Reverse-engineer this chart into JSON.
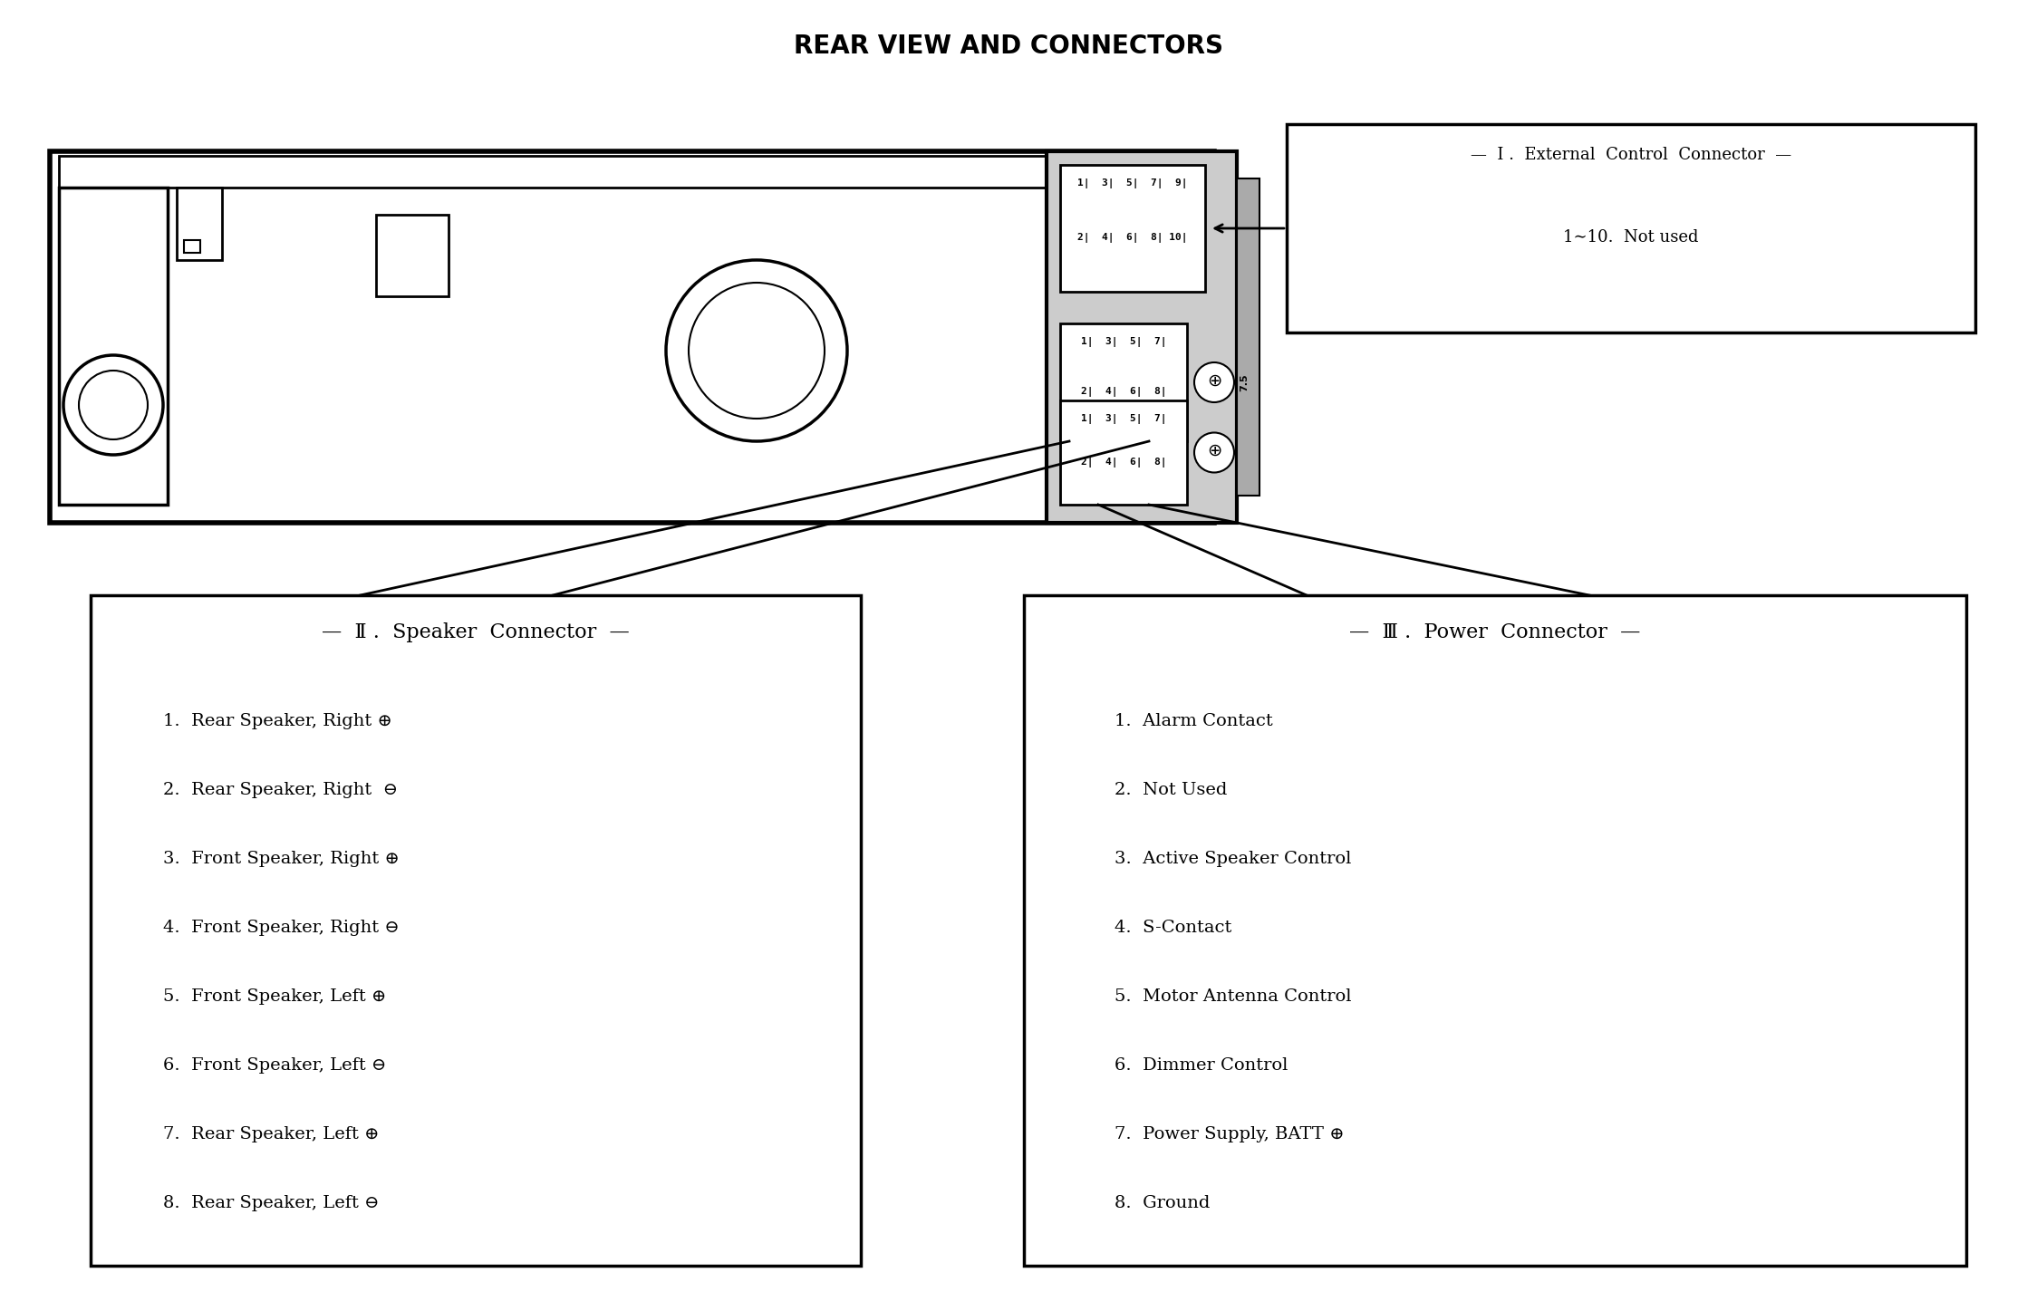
{
  "title": "REAR VIEW AND CONNECTORS",
  "title_fontsize": 20,
  "bg_color": "#ffffff",
  "fg_color": "#000000",
  "connector_I_title": "—  I .  External  Control  Connector  —",
  "connector_I_subtitle": "1∼10.  Not used",
  "connector_II_title": "—  Ⅱ .  Speaker  Connector  —",
  "connector_II_items": [
    "1.  Rear Speaker, Right ⊕",
    "2.  Rear Speaker, Right  ⊖",
    "3.  Front Speaker, Right ⊕",
    "4.  Front Speaker, Right ⊖",
    "5.  Front Speaker, Left ⊕",
    "6.  Front Speaker, Left ⊖",
    "7.  Rear Speaker, Left ⊕",
    "8.  Rear Speaker, Left ⊖"
  ],
  "connector_III_title": "—  Ⅲ .  Power  Connector  —",
  "connector_III_items": [
    "1.  Alarm Contact",
    "2.  Not Used",
    "3.  Active Speaker Control",
    "4.  S-Contact",
    "5.  Motor Antenna Control",
    "6.  Dimmer Control",
    "7.  Power Supply, BATT ⊕",
    "8.  Ground"
  ]
}
